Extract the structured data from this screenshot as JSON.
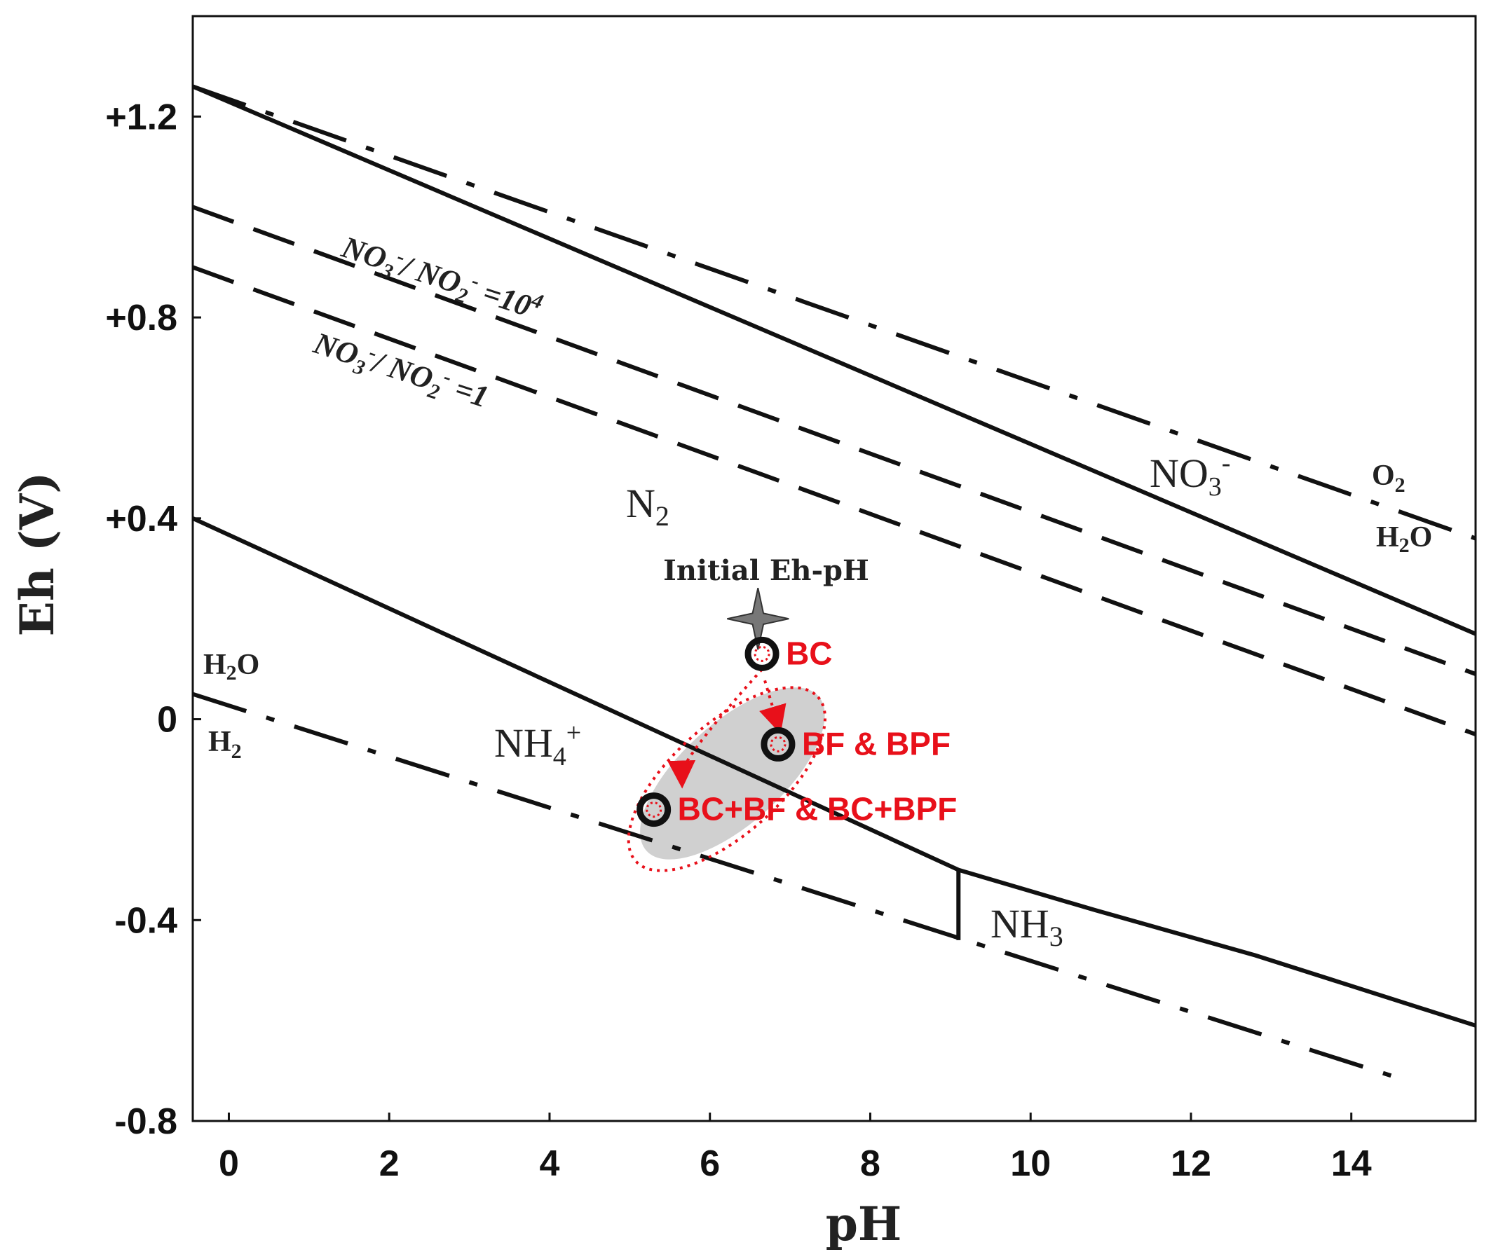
{
  "chart_data": {
    "type": "line",
    "xlabel": "pH",
    "ylabel": "Eh (V)",
    "xlim": [
      -0.45,
      15.55
    ],
    "ylim": [
      -0.8,
      1.4
    ],
    "x_ticks": [
      "0",
      "2",
      "4",
      "6",
      "8",
      "10",
      "12",
      "14"
    ],
    "y_ticks": [
      "+1.2",
      "+0.8",
      "+0.4",
      "0",
      "-0.4",
      "-0.8"
    ],
    "grid": false,
    "series": [
      {
        "style": "dash-dot",
        "points": [
          [
            -0.45,
            1.26
          ],
          [
            15.55,
            0.36
          ]
        ]
      },
      {
        "style": "dash-dot",
        "points": [
          [
            -0.45,
            0.05
          ],
          [
            14.7,
            -0.72
          ]
        ]
      },
      {
        "style": "solid",
        "points": [
          [
            -0.45,
            1.26
          ],
          [
            15.55,
            0.17
          ]
        ]
      },
      {
        "style": "dashed",
        "points": [
          [
            -0.45,
            1.02
          ],
          [
            15.55,
            0.09
          ]
        ]
      },
      {
        "style": "dashed",
        "points": [
          [
            -0.45,
            0.9
          ],
          [
            15.55,
            -0.03
          ]
        ]
      },
      {
        "style": "solid",
        "points": [
          [
            -0.45,
            0.4
          ],
          [
            9.1,
            -0.3
          ],
          [
            10.8,
            -0.38
          ],
          [
            12.8,
            -0.47
          ],
          [
            15.55,
            -0.61
          ]
        ]
      },
      {
        "style": "solid",
        "points": [
          [
            9.1,
            -0.3
          ],
          [
            9.1,
            -0.44
          ]
        ]
      }
    ],
    "annotations": {
      "no3_no2_1e4": {
        "pre": "NO",
        "s1": "3",
        "s2": "-",
        "mid": "/ NO",
        "s3": "2",
        "s4": "-",
        "end": " =10",
        "s5": "4"
      },
      "no3_no2_1": {
        "pre": "NO",
        "s1": "3",
        "s2": "-",
        "mid": "/ NO",
        "s3": "2",
        "s4": "-",
        "end": " =1"
      },
      "n2": {
        "t": "N",
        "s": "2"
      },
      "no3": {
        "t": "NO",
        "s1": "3",
        "s2": "-"
      },
      "o2": {
        "t": "O",
        "s": "2"
      },
      "h2o_upper": {
        "t": "H",
        "s": "2",
        "t2": "O"
      },
      "h2o_lower": {
        "t": "H",
        "s": "2",
        "t2": "O"
      },
      "h2": {
        "t": "H",
        "s": "2"
      },
      "nh4": {
        "t": "NH",
        "s1": "4",
        "s2": "+"
      },
      "nh3": {
        "t": "NH",
        "s": "3"
      },
      "initial": "Initial Eh-pH"
    },
    "points": [
      {
        "label": "BC",
        "ph": 6.65,
        "eh": 0.13
      },
      {
        "label": "BF & BPF",
        "ph": 6.85,
        "eh": -0.05
      },
      {
        "label": "BC+BF & BC+BPF",
        "ph": 5.3,
        "eh": -0.18
      }
    ],
    "initial_point": {
      "ph": 6.6,
      "eh": 0.2
    },
    "colors": {
      "line": "#111111",
      "marker": "#e8101a",
      "shade": "#c8c8c8"
    }
  }
}
